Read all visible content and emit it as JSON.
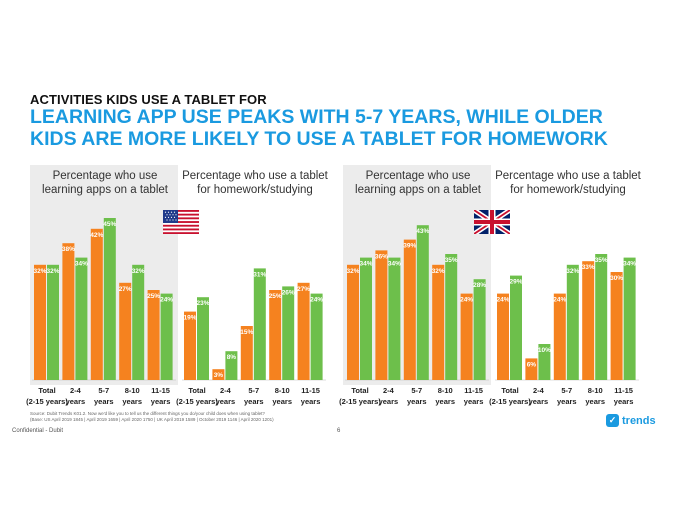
{
  "kicker": "ACTIVITIES KIDS USE A TABLET FOR",
  "headline": {
    "line1": "LEARNING APP USE PEAKS WITH 5-7 YEARS, WHILE OLDER",
    "line2": "KIDS ARE MORE LIKELY TO USE A TABLET FOR HOMEWORK"
  },
  "colors": {
    "orange": "#f5821f",
    "green": "#6dbf4b",
    "accent": "#1a9ae0",
    "shade": "#ececec"
  },
  "chart_data": [
    {
      "type": "bar",
      "country": "us-flag-icon",
      "title": "Percentage who use learning apps on a tablet",
      "categories": [
        "Total (2-15 years)",
        "2-4 years",
        "5-7 years",
        "8-10 years",
        "11-15 years"
      ],
      "series": [
        {
          "values": [
            32,
            38,
            42,
            27,
            25
          ]
        },
        {
          "values": [
            32,
            34,
            45,
            32,
            24
          ]
        }
      ],
      "unit": "%",
      "ylim": [
        0,
        50
      ]
    },
    {
      "type": "bar",
      "country": "us-flag-icon",
      "title": "Percentage who use a tablet for homework/studying",
      "categories": [
        "Total (2-15 years)",
        "2-4 years",
        "5-7 years",
        "8-10 years",
        "11-15 years"
      ],
      "series": [
        {
          "values": [
            19,
            3,
            15,
            25,
            27
          ]
        },
        {
          "values": [
            23,
            8,
            31,
            26,
            24
          ]
        }
      ],
      "unit": "%",
      "ylim": [
        0,
        50
      ]
    },
    {
      "type": "bar",
      "country": "uk-flag-icon",
      "title": "Percentage who use learning apps on a tablet",
      "categories": [
        "Total (2-15 years)",
        "2-4 years",
        "5-7 years",
        "8-10 years",
        "11-15 years"
      ],
      "series": [
        {
          "values": [
            32,
            36,
            39,
            32,
            24
          ]
        },
        {
          "values": [
            34,
            34,
            43,
            35,
            28
          ]
        }
      ],
      "unit": "%",
      "ylim": [
        0,
        50
      ]
    },
    {
      "type": "bar",
      "country": "uk-flag-icon",
      "title": "Percentage who use a tablet for homework/studying",
      "categories": [
        "Total (2-15 years)",
        "2-4 years",
        "5-7 years",
        "8-10 years",
        "11-15 years"
      ],
      "series": [
        {
          "values": [
            24,
            6,
            24,
            33,
            30
          ]
        },
        {
          "values": [
            29,
            10,
            32,
            35,
            34
          ]
        }
      ],
      "unit": "%",
      "ylim": [
        0,
        50
      ]
    }
  ],
  "panel_titles": {
    "us_learning": "Percentage who use learning apps on a tablet",
    "us_homework": "Percentage who use a tablet for homework/studying",
    "uk_learning": "Percentage who use learning apps on a tablet",
    "uk_homework": "Percentage who use a tablet for homework/studying"
  },
  "footer": {
    "source_line1": "Source: Dubit Trends  K01.2. Now we'd like you to tell us the different things you do/your child does when using tablet?",
    "source_line2": "(Base: US April 2019 1845 | April 2019 1659 | April 2020 1750 | UK April 2019 1589 | October 2019 1146 | April 2020 1201)",
    "confidential": "Confidential - Dubit",
    "page": "6",
    "logo_text": "trends"
  }
}
